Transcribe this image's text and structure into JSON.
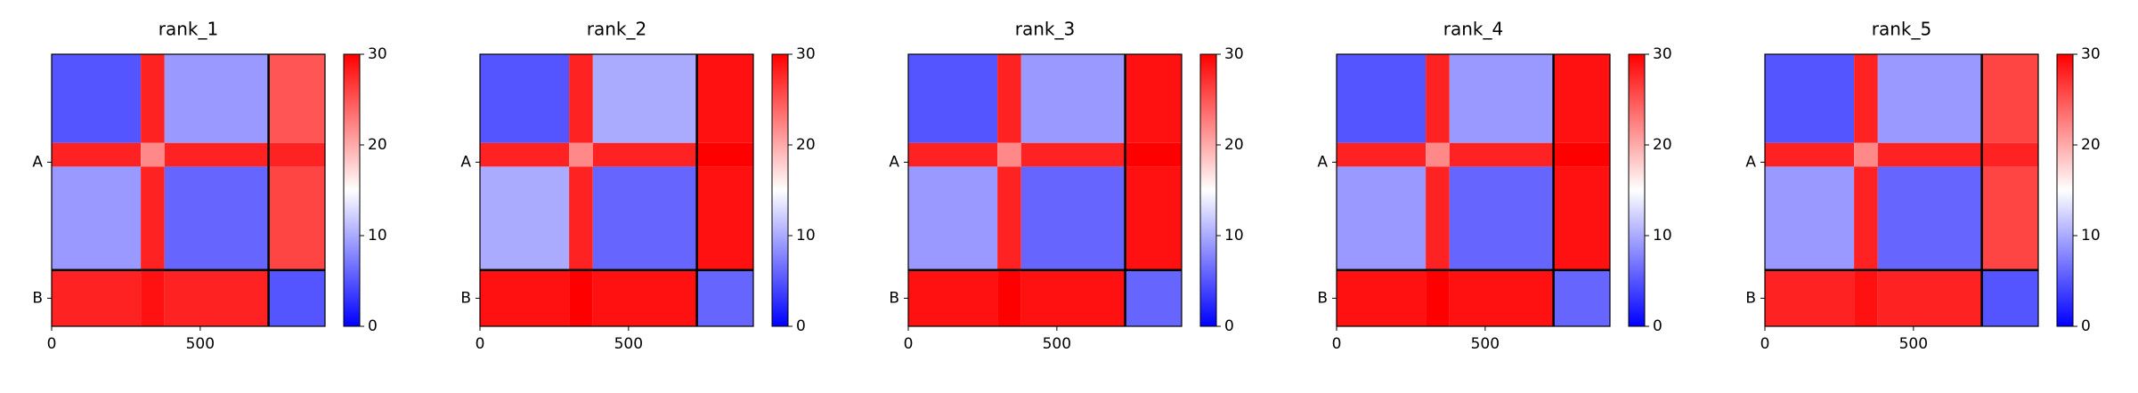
{
  "chart_data": [
    {
      "type": "heatmap",
      "title": "rank_1",
      "bins": [
        0,
        300,
        380,
        730,
        920
      ],
      "values": [
        [
          5,
          28,
          9,
          25
        ],
        [
          28,
          22,
          28,
          28
        ],
        [
          9,
          28,
          6,
          26
        ],
        [
          28,
          29,
          28,
          5
        ]
      ],
      "xlim": [
        0,
        920
      ],
      "xticks": [
        0,
        500
      ],
      "ylim": [
        0,
        920
      ],
      "y_inverted": true,
      "yticks": [
        {
          "value": 365,
          "label": "A"
        },
        {
          "value": 825,
          "label": "B"
        }
      ],
      "chain_breaks": [
        730
      ],
      "clim": [
        0,
        30
      ],
      "cticks": [
        0,
        10,
        20,
        30
      ],
      "colormap": "bwr"
    },
    {
      "type": "heatmap",
      "title": "rank_2",
      "bins": [
        0,
        300,
        380,
        730,
        920
      ],
      "values": [
        [
          5,
          28,
          10,
          29
        ],
        [
          28,
          22,
          28,
          30
        ],
        [
          10,
          28,
          6,
          29
        ],
        [
          29,
          30,
          29,
          6
        ]
      ],
      "xlim": [
        0,
        920
      ],
      "xticks": [
        0,
        500
      ],
      "ylim": [
        0,
        920
      ],
      "y_inverted": true,
      "yticks": [
        {
          "value": 365,
          "label": "A"
        },
        {
          "value": 825,
          "label": "B"
        }
      ],
      "chain_breaks": [
        730
      ],
      "clim": [
        0,
        30
      ],
      "cticks": [
        0,
        10,
        20,
        30
      ],
      "colormap": "bwr"
    },
    {
      "type": "heatmap",
      "title": "rank_3",
      "bins": [
        0,
        300,
        380,
        730,
        920
      ],
      "values": [
        [
          5,
          28,
          9,
          29
        ],
        [
          28,
          22,
          28,
          30
        ],
        [
          9,
          28,
          6,
          29
        ],
        [
          29,
          30,
          29,
          6
        ]
      ],
      "xlim": [
        0,
        920
      ],
      "xticks": [
        0,
        500
      ],
      "ylim": [
        0,
        920
      ],
      "y_inverted": true,
      "yticks": [
        {
          "value": 365,
          "label": "A"
        },
        {
          "value": 825,
          "label": "B"
        }
      ],
      "chain_breaks": [
        730
      ],
      "clim": [
        0,
        30
      ],
      "cticks": [
        0,
        10,
        20,
        30
      ],
      "colormap": "bwr"
    },
    {
      "type": "heatmap",
      "title": "rank_4",
      "bins": [
        0,
        300,
        380,
        730,
        920
      ],
      "values": [
        [
          5,
          28,
          9,
          29
        ],
        [
          28,
          22,
          28,
          30
        ],
        [
          9,
          28,
          6,
          29
        ],
        [
          29,
          30,
          29,
          6
        ]
      ],
      "xlim": [
        0,
        920
      ],
      "xticks": [
        0,
        500
      ],
      "ylim": [
        0,
        920
      ],
      "y_inverted": true,
      "yticks": [
        {
          "value": 365,
          "label": "A"
        },
        {
          "value": 825,
          "label": "B"
        }
      ],
      "chain_breaks": [
        730
      ],
      "clim": [
        0,
        30
      ],
      "cticks": [
        0,
        10,
        20,
        30
      ],
      "colormap": "bwr"
    },
    {
      "type": "heatmap",
      "title": "rank_5",
      "bins": [
        0,
        300,
        380,
        730,
        920
      ],
      "values": [
        [
          5,
          28,
          9,
          26
        ],
        [
          28,
          22,
          28,
          28
        ],
        [
          9,
          28,
          6,
          26
        ],
        [
          28,
          29,
          28,
          5
        ]
      ],
      "xlim": [
        0,
        920
      ],
      "xticks": [
        0,
        500
      ],
      "ylim": [
        0,
        920
      ],
      "y_inverted": true,
      "yticks": [
        {
          "value": 365,
          "label": "A"
        },
        {
          "value": 825,
          "label": "B"
        }
      ],
      "chain_breaks": [
        730
      ],
      "clim": [
        0,
        30
      ],
      "cticks": [
        0,
        10,
        20,
        30
      ],
      "colormap": "bwr"
    }
  ]
}
